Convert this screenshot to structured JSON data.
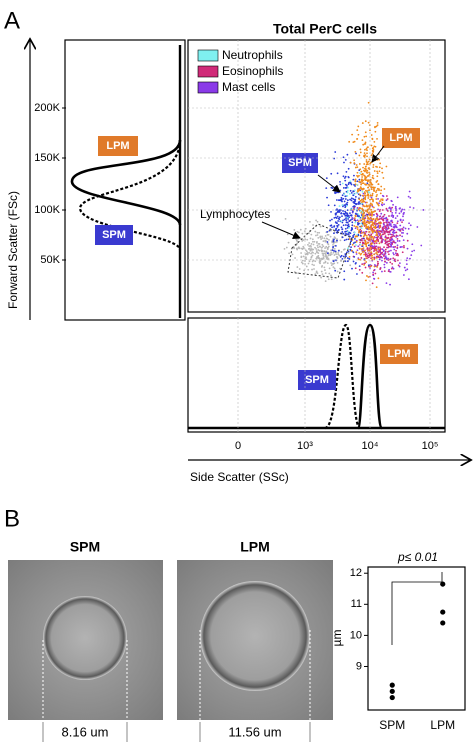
{
  "panel_a": {
    "label": "A",
    "title": "Total PerC cells",
    "y_axis_label": "Forward Scatter (FSc)",
    "y_ticks": [
      "200K",
      "150K",
      "100K",
      "50K"
    ],
    "x_axis_label": "Side Scatter (SSc)",
    "x_ticks": [
      "0",
      "10³",
      "10⁴",
      "10⁵"
    ],
    "legend": [
      "Neutrophils",
      "Eosinophils",
      "Mast cells"
    ],
    "annotations": {
      "lpm": "LPM",
      "spm": "SPM",
      "lymphocytes": "Lymphocytes"
    }
  },
  "panel_b": {
    "label": "B",
    "images": [
      {
        "title": "SPM",
        "measurement": "8.16 um"
      },
      {
        "title": "LPM",
        "measurement": "11.56 um"
      }
    ],
    "chart_data": {
      "type": "strip",
      "ylabel": "µm",
      "annotation": "p≤ 0.01",
      "categories": [
        "SPM",
        "LPM"
      ],
      "values": [
        [
          8.0,
          8.2,
          8.4
        ],
        [
          10.4,
          10.75,
          11.65
        ]
      ],
      "ylim": [
        7.6,
        12.2
      ],
      "yticks": [
        9,
        10,
        11,
        12
      ]
    }
  }
}
